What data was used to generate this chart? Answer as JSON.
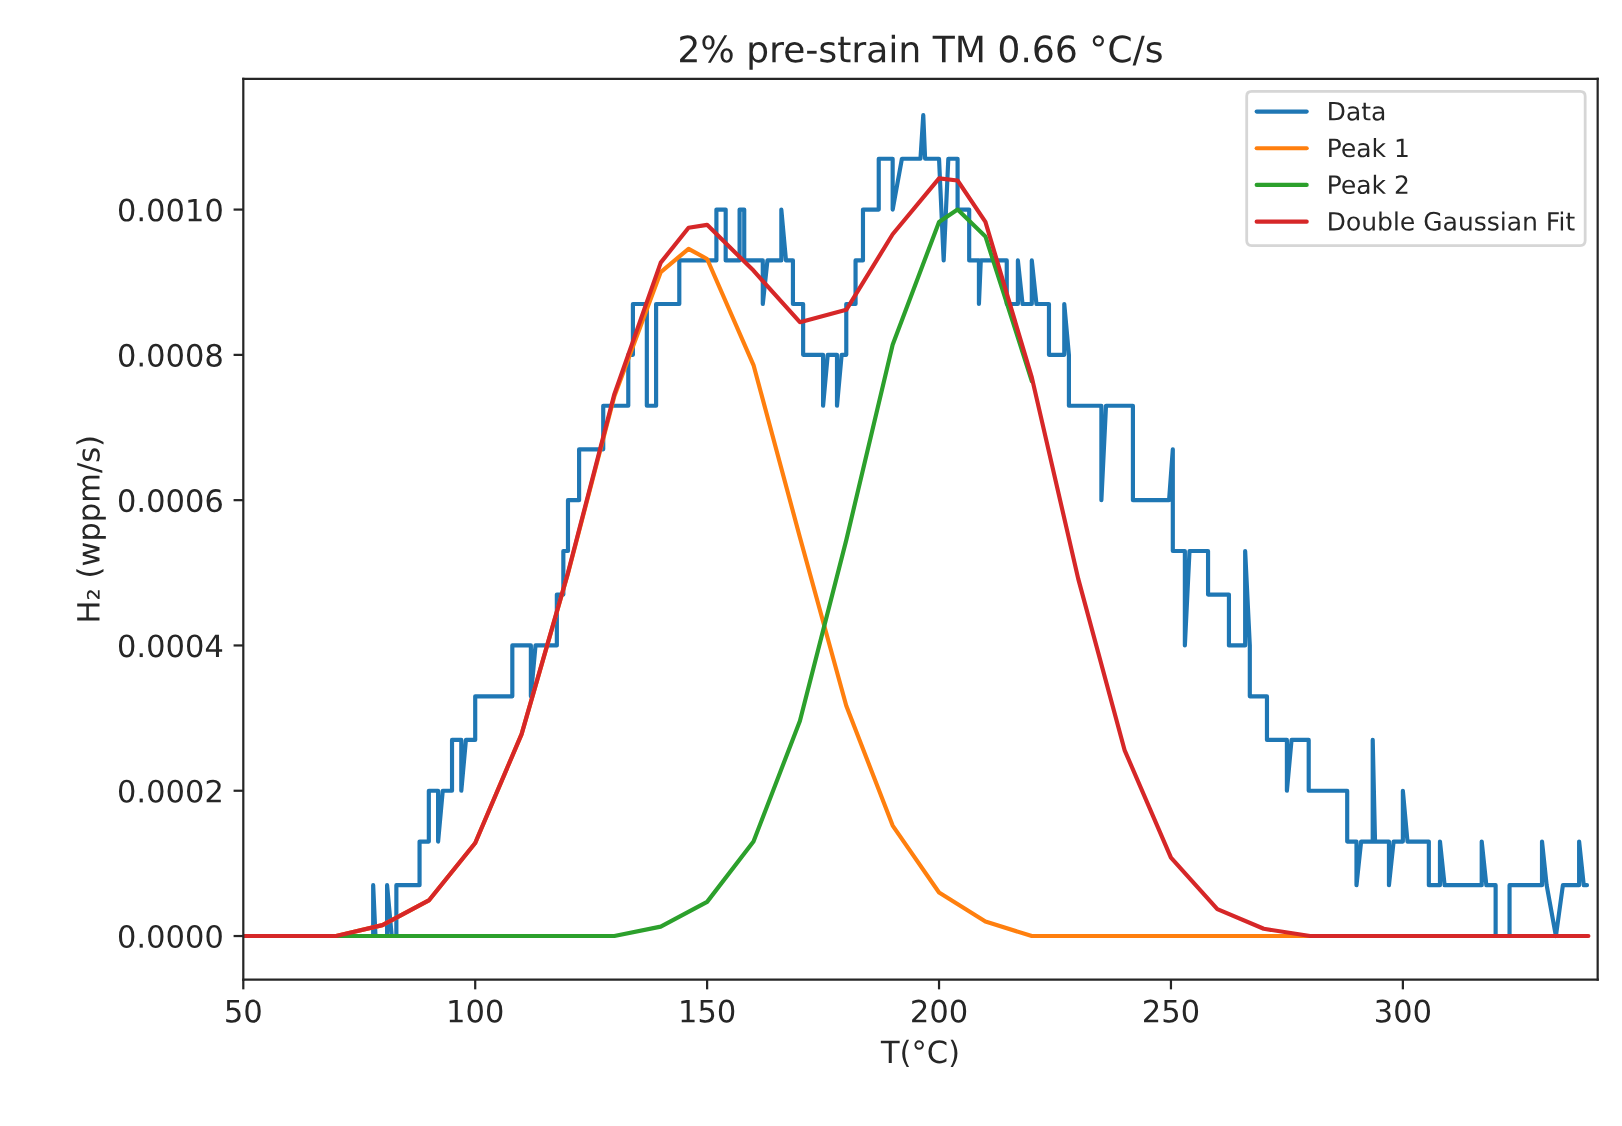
{
  "chart_data": {
    "type": "line",
    "title": "2% pre-strain TM 0.66 °C/s",
    "xlabel": "T(°C)",
    "ylabel": "H₂ (wppm/s)",
    "xlim": [
      50,
      342
    ],
    "xticks": [
      50,
      100,
      150,
      200,
      250,
      300
    ],
    "ylim": [
      -6e-05,
      0.00118
    ],
    "yticks": [
      {
        "value": 0,
        "label": "0.0000"
      },
      {
        "value": 0.0002,
        "label": "0.0002"
      },
      {
        "value": 0.0004,
        "label": "0.0004"
      },
      {
        "value": 0.0006,
        "label": "0.0006"
      },
      {
        "value": 0.0008,
        "label": "0.0008"
      },
      {
        "value": 0.001,
        "label": "0.0010"
      }
    ],
    "grid": false,
    "legend": "top right",
    "line_style": "solid",
    "series": [
      {
        "name": "Data",
        "color": "#1f77b4",
        "x": [
          78,
          78,
          78.5,
          81,
          81,
          82,
          83,
          83,
          88,
          88,
          90,
          90,
          92,
          92,
          93,
          95,
          95,
          97,
          97,
          98,
          100,
          100,
          108,
          108,
          112,
          112,
          113,
          117.6,
          117.6,
          119,
          119,
          120,
          120,
          122.4,
          122.4,
          127.6,
          127.6,
          133,
          133,
          134,
          134,
          137,
          137,
          139,
          139,
          144,
          144,
          152,
          152,
          154,
          154,
          157,
          157,
          158,
          158,
          162,
          162,
          163,
          166,
          166,
          167,
          168.5,
          168.5,
          170.7,
          170.7,
          175,
          175,
          176,
          178,
          178,
          179,
          180,
          180,
          182,
          182,
          183.6,
          183.6,
          187,
          187,
          190,
          190,
          192,
          196,
          196.6,
          197,
          200,
          201,
          202,
          204,
          204,
          206.5,
          206.5,
          208.6,
          208.6,
          209,
          214.6,
          214.6,
          217,
          217,
          218,
          220,
          220,
          221,
          223.7,
          223.7,
          227,
          227,
          228,
          228,
          235,
          235,
          236,
          241.8,
          241.8,
          249.6,
          250.4,
          250.4,
          253,
          253,
          254,
          258,
          258,
          262.5,
          262.5,
          266,
          266,
          267,
          267,
          270.7,
          270.7,
          275,
          275,
          276,
          279.7,
          279.7,
          288,
          288,
          290,
          290,
          291,
          293.5,
          293.5,
          294,
          297,
          297,
          298,
          300,
          300,
          301,
          305.6,
          305.6,
          308,
          308,
          309,
          317,
          317,
          318,
          320,
          320,
          323,
          323,
          330,
          330,
          331,
          333,
          334.5,
          338,
          338,
          339,
          339.7
        ],
        "values": [
          0,
          7e-05,
          0,
          0,
          7e-05,
          0,
          0,
          7e-05,
          7e-05,
          0.00013,
          0.00013,
          0.0002,
          0.0002,
          0.00013,
          0.0002,
          0.0002,
          0.00027,
          0.00027,
          0.0002,
          0.00027,
          0.00027,
          0.00033,
          0.00033,
          0.0004,
          0.0004,
          0.00033,
          0.0004,
          0.0004,
          0.00047,
          0.00047,
          0.00053,
          0.00053,
          0.0006,
          0.0006,
          0.00067,
          0.00067,
          0.00073,
          0.00073,
          0.0008,
          0.0008,
          0.00087,
          0.00087,
          0.00073,
          0.00073,
          0.00087,
          0.00087,
          0.00093,
          0.00093,
          0.001,
          0.001,
          0.00093,
          0.00093,
          0.001,
          0.001,
          0.00093,
          0.00093,
          0.00087,
          0.00093,
          0.00093,
          0.001,
          0.00093,
          0.00093,
          0.00087,
          0.00087,
          0.0008,
          0.0008,
          0.00073,
          0.0008,
          0.0008,
          0.00073,
          0.0008,
          0.0008,
          0.00087,
          0.00087,
          0.00093,
          0.00093,
          0.001,
          0.001,
          0.00107,
          0.00107,
          0.001,
          0.00107,
          0.00107,
          0.00113,
          0.00107,
          0.00107,
          0.00093,
          0.00107,
          0.00107,
          0.001,
          0.001,
          0.00093,
          0.00093,
          0.00087,
          0.00093,
          0.00093,
          0.00087,
          0.00087,
          0.00093,
          0.00087,
          0.00087,
          0.00093,
          0.00087,
          0.00087,
          0.0008,
          0.0008,
          0.00087,
          0.0008,
          0.00073,
          0.00073,
          0.0006,
          0.00073,
          0.00073,
          0.0006,
          0.0006,
          0.00067,
          0.00053,
          0.00053,
          0.0004,
          0.00053,
          0.00053,
          0.00047,
          0.00047,
          0.0004,
          0.0004,
          0.00053,
          0.0004,
          0.00033,
          0.00033,
          0.00027,
          0.00027,
          0.0002,
          0.00027,
          0.00027,
          0.0002,
          0.0002,
          0.00013,
          0.00013,
          7e-05,
          0.00013,
          0.00013,
          0.00027,
          0.00013,
          0.00013,
          7e-05,
          0.00013,
          0.00013,
          0.0002,
          0.00013,
          0.00013,
          7e-05,
          7e-05,
          0.00013,
          7e-05,
          7e-05,
          0.00013,
          7e-05,
          7e-05,
          0,
          0,
          7e-05,
          7e-05,
          0.00013,
          7e-05,
          0,
          7e-05,
          7e-05,
          0.00013,
          7e-05,
          7e-05
        ]
      },
      {
        "name": "Peak 1",
        "color": "#ff7f0e",
        "x": [
          50,
          60,
          70,
          80,
          90,
          100,
          110,
          120,
          130,
          140,
          146,
          150,
          160,
          170,
          180,
          190,
          200,
          210,
          220,
          230,
          240,
          250,
          260,
          270,
          280,
          290,
          300
        ],
        "values": [
          0,
          0,
          0,
          1.5e-05,
          4.9e-05,
          0.000128,
          0.000278,
          0.000499,
          0.000743,
          0.000914,
          0.000946,
          0.000932,
          0.000786,
          0.000549,
          0.000317,
          0.000152,
          6e-05,
          2e-05,
          0,
          0,
          0,
          0,
          0,
          0,
          0,
          0,
          0
        ]
      },
      {
        "name": "Peak 2",
        "color": "#2ca02c",
        "x": [
          50,
          60,
          70,
          80,
          90,
          100,
          110,
          120,
          130,
          140,
          150,
          160,
          170,
          180,
          190,
          200,
          204,
          210,
          220
        ],
        "values": [
          0,
          0,
          0,
          0,
          0,
          0,
          0,
          0,
          0,
          1.3e-05,
          4.7e-05,
          0.00013,
          0.000296,
          0.000545,
          0.000814,
          0.000983,
          0.001,
          0.000963,
          0.000764
        ]
      },
      {
        "name": "Double Gaussian Fit",
        "color": "#d62728",
        "x": [
          50,
          60,
          70,
          80,
          90,
          100,
          110,
          120,
          130,
          140,
          146,
          150,
          160,
          170,
          180,
          190,
          200,
          204,
          210,
          220,
          230,
          240,
          250,
          260,
          270,
          280,
          290,
          300,
          310,
          320,
          330,
          340
        ],
        "values": [
          0,
          0,
          0,
          1.5e-05,
          4.9e-05,
          0.000128,
          0.000278,
          0.0005,
          0.000746,
          0.000927,
          0.000975,
          0.000979,
          0.000916,
          0.000845,
          0.000862,
          0.000966,
          0.001043,
          0.00104,
          0.000983,
          0.000769,
          0.000492,
          0.000256,
          0.000108,
          3.7e-05,
          1e-05,
          0,
          0,
          0,
          0,
          0,
          0,
          0
        ]
      }
    ]
  }
}
